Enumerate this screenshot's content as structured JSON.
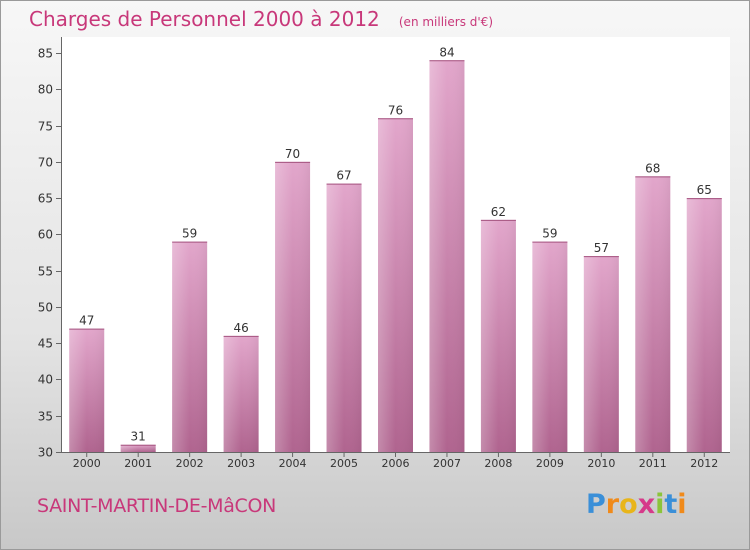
{
  "title": "Charges de Personnel 2000 à 2012",
  "subtitle": "(en milliers d'€)",
  "commune": "SAINT-MARTIN-DE-MâCON",
  "brand": {
    "letters": [
      "P",
      "r",
      "o",
      "x",
      "i",
      "t",
      "i"
    ],
    "colors": [
      "#3a8fd8",
      "#f08a1a",
      "#e8b51a",
      "#d63a8a",
      "#8bc43a",
      "#3a8fd8",
      "#f08a1a"
    ]
  },
  "colors": {
    "bar": "#d889b8",
    "bar_dark": "#b0648f",
    "accent": "#c8387a"
  },
  "chart_data": {
    "type": "bar",
    "categories": [
      "2000",
      "2001",
      "2002",
      "2003",
      "2004",
      "2005",
      "2006",
      "2007",
      "2008",
      "2009",
      "2010",
      "2011",
      "2012"
    ],
    "values": [
      47,
      31,
      59,
      46,
      70,
      67,
      76,
      84,
      62,
      59,
      57,
      68,
      65
    ],
    "ylim": [
      30,
      85
    ],
    "yticks": [
      30,
      35,
      40,
      45,
      50,
      55,
      60,
      65,
      70,
      75,
      80,
      85
    ],
    "grid": false
  }
}
